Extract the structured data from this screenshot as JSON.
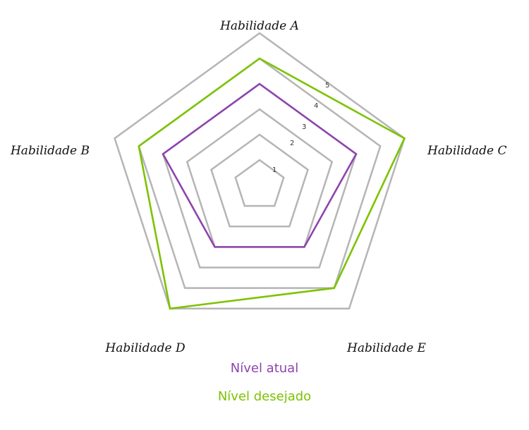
{
  "chart_data": {
    "type": "radar",
    "axes": [
      "Habilidade A",
      "Habilidade C",
      "Habilidade E",
      "Habilidade D",
      "Habilidade B"
    ],
    "ticks": [
      "1",
      "2",
      "3",
      "4",
      "5"
    ],
    "rmax": 6,
    "grid": true,
    "legend_position": "bottom",
    "series": [
      {
        "name": "Nível atual",
        "color": "#8e44ad",
        "values": [
          4,
          4,
          3,
          3,
          4
        ]
      },
      {
        "name": "Nível desejado",
        "color": "#7cc300",
        "values": [
          5,
          6,
          5,
          6,
          5
        ]
      }
    ],
    "grid_color": "#b5b5b5"
  }
}
